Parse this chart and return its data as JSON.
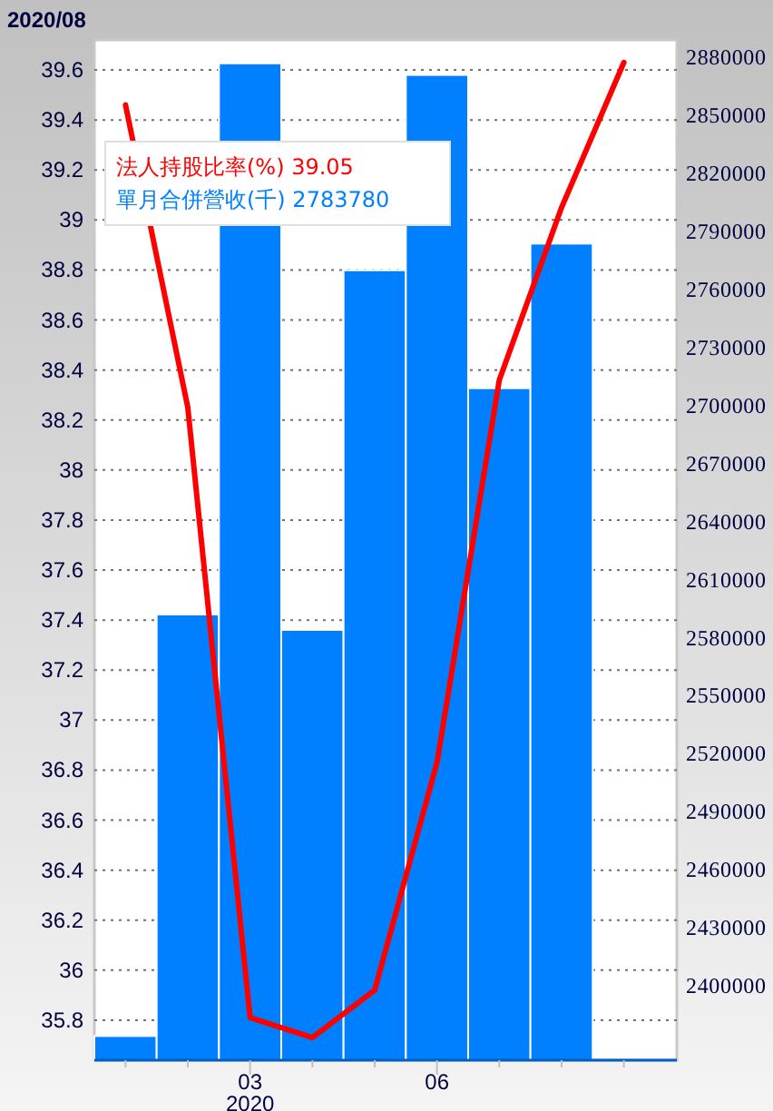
{
  "chart_data": {
    "type": "bar",
    "title": "2020/08",
    "categories": [
      null,
      null,
      "03",
      null,
      null,
      "06",
      null,
      null,
      null
    ],
    "annotations": [
      "2020"
    ],
    "series": [
      {
        "name": "單月合併營收(千) 2783780",
        "axis": "y2",
        "color": "#0080ff",
        "values": [
          2374000,
          2592000,
          2877000,
          2584000,
          2770000,
          2871000,
          2709000,
          2783780,
          null
        ]
      },
      {
        "name": "法人持股比率(%) 39.05",
        "type": "line",
        "color": "#ff0000",
        "values": [
          39.46,
          38.25,
          35.81,
          35.73,
          35.92,
          36.83,
          38.36,
          39.05,
          39.63
        ]
      }
    ],
    "ylim": [
      35.64,
      39.72
    ],
    "yticks": [
      35.8,
      36,
      36.2,
      36.4,
      36.6,
      36.8,
      37,
      37.2,
      37.4,
      37.6,
      37.8,
      38,
      38.2,
      38.4,
      38.6,
      38.8,
      39,
      39.2,
      39.4,
      39.6
    ],
    "y2lim": [
      2361500,
      2889100
    ],
    "y2ticks": [
      2400000,
      2430000,
      2460000,
      2490000,
      2520000,
      2550000,
      2580000,
      2610000,
      2640000,
      2670000,
      2700000,
      2730000,
      2760000,
      2790000,
      2820000,
      2850000,
      2880000
    ],
    "grid": "y",
    "legend": "top left",
    "marker": "none",
    "line_style": "solid"
  }
}
